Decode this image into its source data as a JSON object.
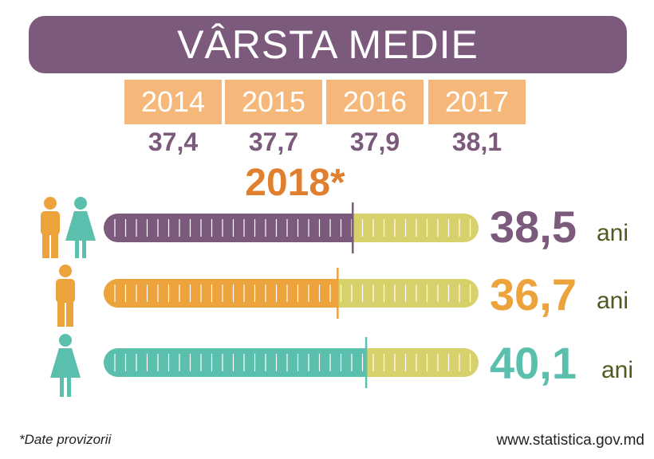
{
  "title": "VÂRSTA MEDIE",
  "chart_data": {
    "type": "bar",
    "history": {
      "categories": [
        "2014",
        "2015",
        "2016",
        "2017"
      ],
      "values": [
        "37,4",
        "37,7",
        "37,9",
        "38,1"
      ]
    },
    "highlight_year": "2018*",
    "unit": "ani",
    "bars": [
      {
        "icon": "man-and-woman-icon",
        "value": 38.5,
        "label": "38,5",
        "color": "#7b5a7c"
      },
      {
        "icon": "man-icon",
        "value": 36.7,
        "label": "36,7",
        "color": "#eda33c"
      },
      {
        "icon": "woman-icon",
        "value": 40.1,
        "label": "40,1",
        "color": "#5bbfae"
      }
    ],
    "track_color": "#d6d16a"
  },
  "footnote": "*Date provizorii",
  "source": "www.statistica.gov.md"
}
